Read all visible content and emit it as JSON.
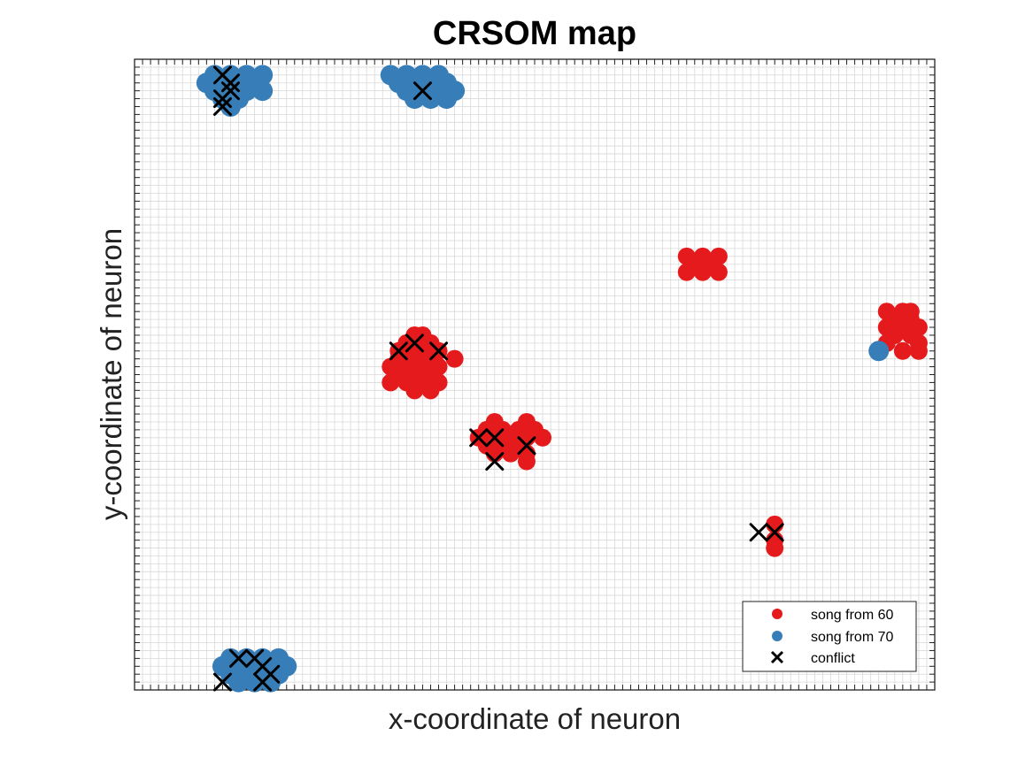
{
  "chart_data": {
    "type": "scatter",
    "title": "CRSOM map",
    "xlabel": "x-coordinate of neuron",
    "ylabel": "y-coordinate of neuron",
    "xlim": [
      0,
      100
    ],
    "ylim": [
      0,
      80
    ],
    "grid": true,
    "legend_position": "bottom-right",
    "series": [
      {
        "name": "song from 60",
        "marker": "circle",
        "color": "#e41a1c",
        "points": [
          [
            69,
            55
          ],
          [
            71,
            55
          ],
          [
            73,
            55
          ],
          [
            70,
            54
          ],
          [
            72,
            54
          ],
          [
            69,
            53
          ],
          [
            71,
            53
          ],
          [
            73,
            53
          ],
          [
            94,
            48
          ],
          [
            96,
            48
          ],
          [
            97,
            48
          ],
          [
            95,
            47
          ],
          [
            97,
            47
          ],
          [
            94,
            46
          ],
          [
            96,
            46
          ],
          [
            98,
            46
          ],
          [
            95,
            45
          ],
          [
            97,
            45
          ],
          [
            94,
            44
          ],
          [
            98,
            44
          ],
          [
            96,
            43
          ],
          [
            98,
            43
          ],
          [
            35,
            45
          ],
          [
            36,
            45
          ],
          [
            34,
            44
          ],
          [
            37,
            44
          ],
          [
            33,
            43
          ],
          [
            35,
            43
          ],
          [
            36,
            43
          ],
          [
            38,
            43
          ],
          [
            33,
            42
          ],
          [
            34,
            42
          ],
          [
            36,
            42
          ],
          [
            37,
            42
          ],
          [
            40,
            42
          ],
          [
            32,
            41
          ],
          [
            34,
            41
          ],
          [
            35,
            41
          ],
          [
            36,
            41
          ],
          [
            38,
            41
          ],
          [
            33,
            40
          ],
          [
            35,
            40
          ],
          [
            37,
            40
          ],
          [
            32,
            39
          ],
          [
            34,
            39
          ],
          [
            36,
            39
          ],
          [
            38,
            39
          ],
          [
            35,
            38
          ],
          [
            37,
            38
          ],
          [
            45,
            34
          ],
          [
            49,
            34
          ],
          [
            44,
            33
          ],
          [
            46,
            33
          ],
          [
            48,
            33
          ],
          [
            50,
            33
          ],
          [
            51,
            32
          ],
          [
            43,
            32
          ],
          [
            45,
            32
          ],
          [
            47,
            32
          ],
          [
            49,
            32
          ],
          [
            44,
            31
          ],
          [
            46,
            31
          ],
          [
            48,
            31
          ],
          [
            49,
            30
          ],
          [
            45,
            30
          ],
          [
            47,
            30
          ],
          [
            49,
            29
          ],
          [
            80,
            21
          ],
          [
            80,
            19
          ],
          [
            80,
            18
          ]
        ]
      },
      {
        "name": "song from 70",
        "marker": "circle",
        "color": "#377eb8",
        "points": [
          [
            10,
            78
          ],
          [
            12,
            78
          ],
          [
            14,
            78
          ],
          [
            16,
            78
          ],
          [
            9,
            77
          ],
          [
            11,
            77
          ],
          [
            13,
            77
          ],
          [
            15,
            77
          ],
          [
            10,
            76
          ],
          [
            12,
            76
          ],
          [
            14,
            76
          ],
          [
            16,
            76
          ],
          [
            11,
            75
          ],
          [
            13,
            75
          ],
          [
            12,
            74
          ],
          [
            32,
            78
          ],
          [
            34,
            78
          ],
          [
            36,
            78
          ],
          [
            38,
            78
          ],
          [
            33,
            77
          ],
          [
            35,
            77
          ],
          [
            37,
            77
          ],
          [
            39,
            77
          ],
          [
            34,
            76
          ],
          [
            36,
            76
          ],
          [
            38,
            76
          ],
          [
            40,
            76
          ],
          [
            35,
            75
          ],
          [
            37,
            75
          ],
          [
            39,
            75
          ],
          [
            93,
            43
          ],
          [
            12,
            4
          ],
          [
            14,
            4
          ],
          [
            16,
            4
          ],
          [
            18,
            4
          ],
          [
            11,
            3
          ],
          [
            13,
            3
          ],
          [
            15,
            3
          ],
          [
            17,
            3
          ],
          [
            19,
            3
          ],
          [
            12,
            2
          ],
          [
            14,
            2
          ],
          [
            16,
            2
          ],
          [
            18,
            2
          ],
          [
            13,
            1
          ],
          [
            15,
            1
          ],
          [
            17,
            1
          ]
        ]
      },
      {
        "name": "conflict",
        "marker": "x",
        "color": "#000000",
        "points": [
          [
            11,
            78
          ],
          [
            12,
            77
          ],
          [
            12,
            76
          ],
          [
            11,
            75
          ],
          [
            11,
            74
          ],
          [
            36,
            76
          ],
          [
            33,
            43
          ],
          [
            35,
            44
          ],
          [
            38,
            43
          ],
          [
            43,
            32
          ],
          [
            45,
            32
          ],
          [
            45,
            29
          ],
          [
            49,
            31
          ],
          [
            78,
            20
          ],
          [
            80,
            20
          ],
          [
            13,
            4
          ],
          [
            15,
            4
          ],
          [
            16,
            3
          ],
          [
            17,
            2
          ],
          [
            11,
            1
          ],
          [
            16,
            1
          ]
        ]
      }
    ]
  }
}
